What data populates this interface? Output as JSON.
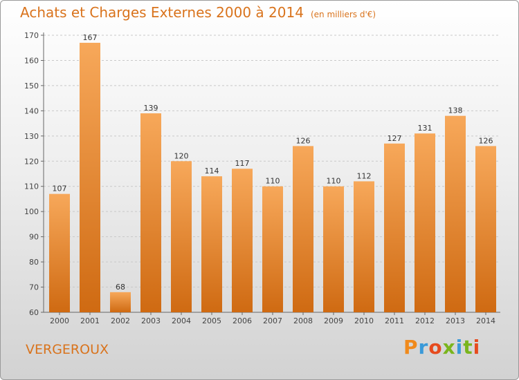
{
  "header": {
    "title": "Achats et Charges Externes 2000 à 2014",
    "subtitle": "(en milliers d'€)"
  },
  "footer": {
    "location": "VERGEROUX",
    "brand": "Proxiti",
    "brand_colors": [
      "#f08a1c",
      "#3a9ad9",
      "#e64b1e",
      "#7ab51d",
      "#3a9ad9",
      "#7ab51d",
      "#e64b1e"
    ]
  },
  "colors": {
    "bar_light": "#f7a85a",
    "bar_dark": "#cf6a12",
    "accent": "#d9731c"
  },
  "chart_data": {
    "type": "bar",
    "categories": [
      "2000",
      "2001",
      "2002",
      "2003",
      "2004",
      "2005",
      "2006",
      "2007",
      "2008",
      "2009",
      "2010",
      "2011",
      "2012",
      "2013",
      "2014"
    ],
    "values": [
      107,
      167,
      68,
      139,
      120,
      114,
      117,
      110,
      126,
      110,
      112,
      127,
      131,
      138,
      126
    ],
    "title": "Achats et Charges Externes 2000 à 2014",
    "subtitle": "(en milliers d'€)",
    "ylim": [
      60,
      170
    ],
    "yticks": [
      60,
      70,
      80,
      90,
      100,
      110,
      120,
      130,
      140,
      150,
      160,
      170
    ],
    "grid": true,
    "data_labels": true
  }
}
